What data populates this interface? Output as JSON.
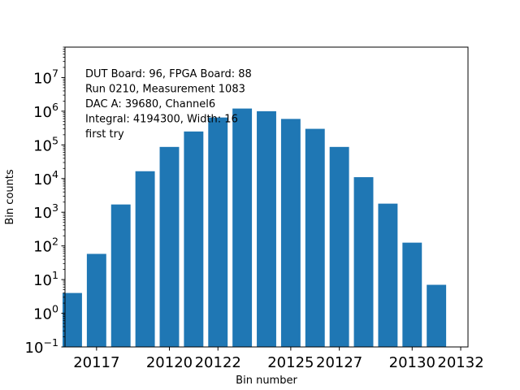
{
  "chart_data": {
    "type": "bar",
    "title": "",
    "xlabel": "Bin number",
    "ylabel": "Bin counts",
    "yscale": "log",
    "ylim": [
      0.1,
      80000000
    ],
    "xlim": [
      20115.7,
      20132.3
    ],
    "color": "#1f77b4",
    "x": [
      20116,
      20117,
      20118,
      20119,
      20120,
      20121,
      20122,
      20123,
      20124,
      20125,
      20126,
      20127,
      20128,
      20129,
      20130,
      20131
    ],
    "values": [
      4,
      58,
      1700,
      16500,
      87000,
      250000,
      650000,
      1200000,
      1000000,
      590000,
      300000,
      87000,
      11000,
      1800,
      125,
      7
    ],
    "x_ticks": [
      20117,
      20120,
      20122,
      20125,
      20127,
      20130,
      20132
    ],
    "y_ticks": [
      {
        "base": "10",
        "exp": "−1",
        "value": 0.1
      },
      {
        "base": "10",
        "exp": "0",
        "value": 1
      },
      {
        "base": "10",
        "exp": "1",
        "value": 10
      },
      {
        "base": "10",
        "exp": "2",
        "value": 100
      },
      {
        "base": "10",
        "exp": "3",
        "value": 1000
      },
      {
        "base": "10",
        "exp": "4",
        "value": 10000
      },
      {
        "base": "10",
        "exp": "5",
        "value": 100000
      },
      {
        "base": "10",
        "exp": "6",
        "value": 1000000
      },
      {
        "base": "10",
        "exp": "7",
        "value": 10000000
      }
    ],
    "annotations": [
      "DUT Board: 96, FPGA Board: 88",
      "Run 0210, Measurement 1083",
      "DAC A: 39680, Channel6",
      "Integral: 4194300, Width: 16",
      "first try"
    ]
  }
}
